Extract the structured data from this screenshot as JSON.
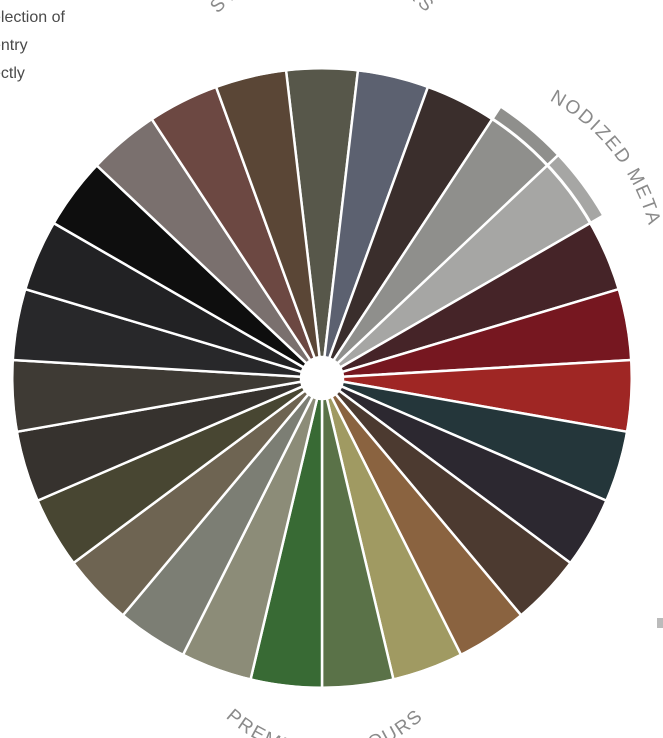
{
  "intro_lines": [
    "election of",
    "entry",
    "ectly"
  ],
  "group_labels": {
    "standard": "STANDARD COLOURS",
    "anodized": "ANODIZED METAL",
    "premium": "PREMIUM COLOURS"
  },
  "swatches": [
    {
      "group": "standard",
      "color": "#57574a"
    },
    {
      "group": "standard",
      "color": "#5c6170"
    },
    {
      "group": "standard",
      "color": "#3a2e2c"
    },
    {
      "group": "anodized",
      "color": "#8f8f8c"
    },
    {
      "group": "anodized",
      "color": "#a6a6a4"
    },
    {
      "group": "standard",
      "color": "#452428"
    },
    {
      "group": "standard",
      "color": "#761720"
    },
    {
      "group": "standard",
      "color": "#9f2624"
    },
    {
      "group": "standard",
      "color": "#24363a"
    },
    {
      "group": "standard",
      "color": "#2c2830"
    },
    {
      "group": "premium",
      "color": "#4c3a30"
    },
    {
      "group": "premium",
      "color": "#8a6340"
    },
    {
      "group": "premium",
      "color": "#a09a62"
    },
    {
      "group": "premium",
      "color": "#5a7248"
    },
    {
      "group": "premium",
      "color": "#386a34"
    },
    {
      "group": "premium",
      "color": "#8c8c78"
    },
    {
      "group": "premium",
      "color": "#7c7e74"
    },
    {
      "group": "premium",
      "color": "#6e6452"
    },
    {
      "group": "standard",
      "color": "#484632"
    },
    {
      "group": "standard",
      "color": "#36322e"
    },
    {
      "group": "standard",
      "color": "#3e3a34"
    },
    {
      "group": "standard",
      "color": "#28282a"
    },
    {
      "group": "standard",
      "color": "#222224"
    },
    {
      "group": "standard",
      "color": "#0e0e0e"
    },
    {
      "group": "standard",
      "color": "#7a706e"
    },
    {
      "group": "standard",
      "color": "#6c4842"
    },
    {
      "group": "standard",
      "color": "#5a4636"
    }
  ]
}
